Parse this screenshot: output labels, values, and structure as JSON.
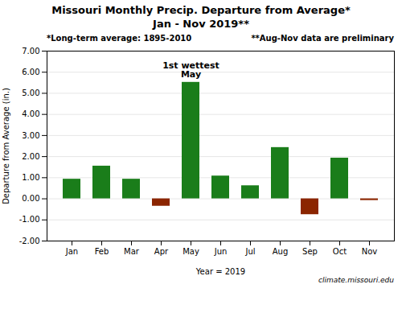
{
  "chart_data": {
    "type": "bar",
    "title": "Missouri Monthly Precip. Departure from Average*",
    "subtitle": "Jan - Nov 2019**",
    "categories": [
      "Jan",
      "Feb",
      "Mar",
      "Apr",
      "May",
      "Jun",
      "Jul",
      "Aug",
      "Sep",
      "Oct",
      "Nov"
    ],
    "values": [
      0.93,
      1.55,
      0.93,
      -0.35,
      5.52,
      1.08,
      0.62,
      2.43,
      -0.75,
      1.93,
      -0.08
    ],
    "colors": [
      "#1a7d1a",
      "#1a7d1a",
      "#1a7d1a",
      "#8b2500",
      "#1a7d1a",
      "#1a7d1a",
      "#1a7d1a",
      "#1a7d1a",
      "#8b2500",
      "#1a7d1a",
      "#8b2500"
    ],
    "xlabel": "Year = 2019",
    "ylabel": "Departure from Average (in.)",
    "ylim": [
      -2.0,
      7.0
    ],
    "yticks": [
      {
        "value": -2.0,
        "label": "-2.00"
      },
      {
        "value": -1.0,
        "label": "-1.00"
      },
      {
        "value": 0.0,
        "label": "0.00"
      },
      {
        "value": 1.0,
        "label": "1.00"
      },
      {
        "value": 2.0,
        "label": "2.00"
      },
      {
        "value": 3.0,
        "label": "3.00"
      },
      {
        "value": 4.0,
        "label": "4.00"
      },
      {
        "value": 5.0,
        "label": "5.00"
      },
      {
        "value": 6.0,
        "label": "6.00"
      },
      {
        "value": 7.0,
        "label": "7.00"
      }
    ],
    "grid": true,
    "annotations": [
      {
        "text": "1st wettest\nMay",
        "x": "May",
        "y": 5.52
      }
    ],
    "notes": [
      "*Long-term average: 1895-2010",
      "**Aug-Nov data are preliminary"
    ],
    "watermark": "climate.missouri.edu"
  }
}
